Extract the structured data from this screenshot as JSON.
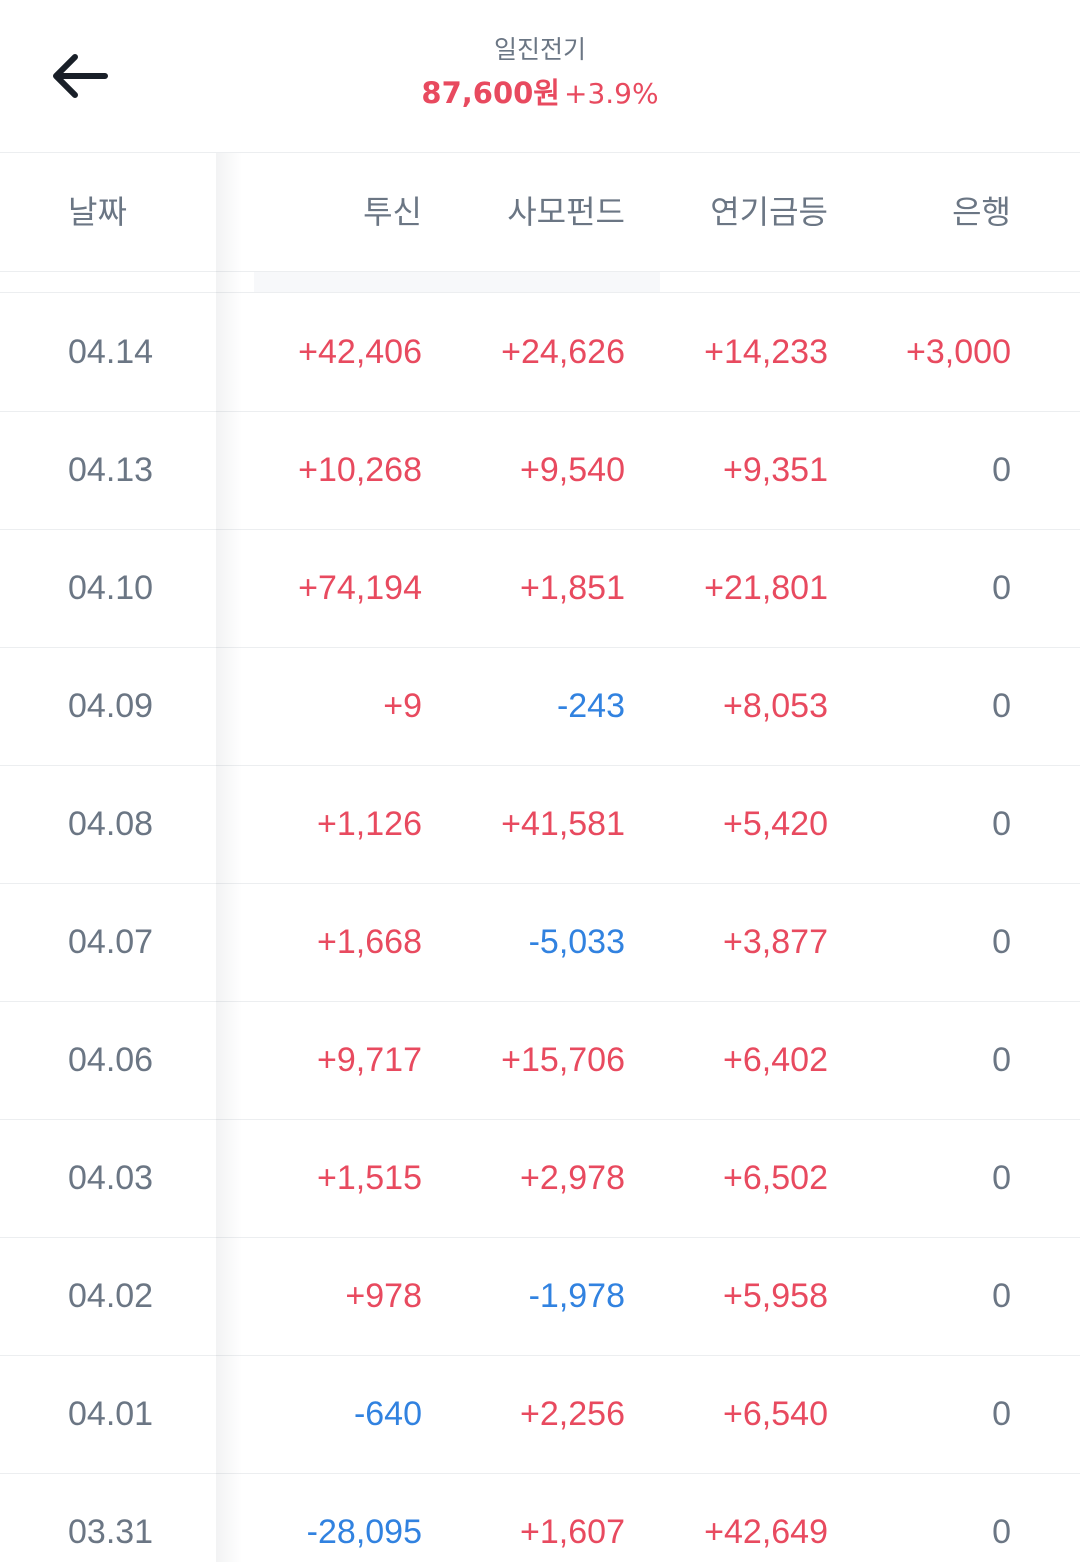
{
  "header": {
    "stock_name": "일진전기",
    "price": "87,600원",
    "change": "+3.9%"
  },
  "columns": {
    "date": "날짜",
    "trust": "투신",
    "private_fund": "사모펀드",
    "pension": "연기금등",
    "bank": "은행"
  },
  "rows": [
    {
      "date": "04.14",
      "trust": "+42,406",
      "private_fund": "+24,626",
      "pension": "+14,233",
      "bank": "+3,000"
    },
    {
      "date": "04.13",
      "trust": "+10,268",
      "private_fund": "+9,540",
      "pension": "+9,351",
      "bank": "0"
    },
    {
      "date": "04.10",
      "trust": "+74,194",
      "private_fund": "+1,851",
      "pension": "+21,801",
      "bank": "0"
    },
    {
      "date": "04.09",
      "trust": "+9",
      "private_fund": "-243",
      "pension": "+8,053",
      "bank": "0"
    },
    {
      "date": "04.08",
      "trust": "+1,126",
      "private_fund": "+41,581",
      "pension": "+5,420",
      "bank": "0"
    },
    {
      "date": "04.07",
      "trust": "+1,668",
      "private_fund": "-5,033",
      "pension": "+3,877",
      "bank": "0"
    },
    {
      "date": "04.06",
      "trust": "+9,717",
      "private_fund": "+15,706",
      "pension": "+6,402",
      "bank": "0"
    },
    {
      "date": "04.03",
      "trust": "+1,515",
      "private_fund": "+2,978",
      "pension": "+6,502",
      "bank": "0"
    },
    {
      "date": "04.02",
      "trust": "+978",
      "private_fund": "-1,978",
      "pension": "+5,958",
      "bank": "0"
    },
    {
      "date": "04.01",
      "trust": "-640",
      "private_fund": "+2,256",
      "pension": "+6,540",
      "bank": "0"
    },
    {
      "date": "03.31",
      "trust": "-28,095",
      "private_fund": "+1,607",
      "pension": "+42,649",
      "bank": "0"
    }
  ],
  "colors": {
    "positive": "#e84a5f",
    "negative": "#3182e0",
    "neutral": "#6b7684"
  },
  "icons": {
    "back": "arrow-left-icon"
  }
}
